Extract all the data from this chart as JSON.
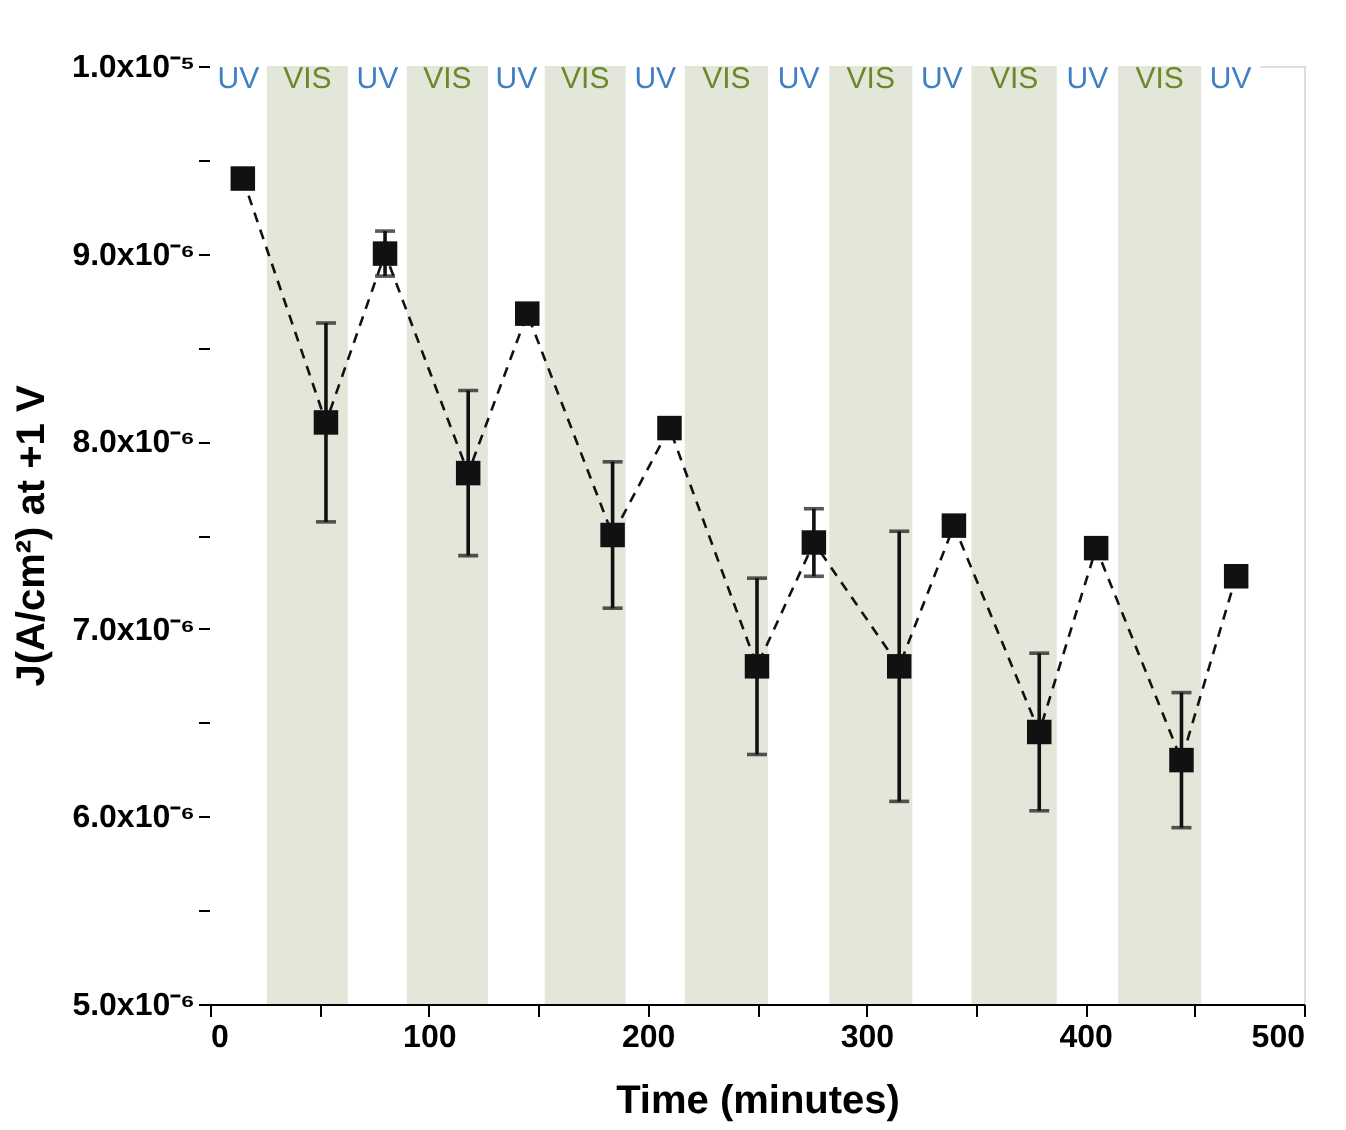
{
  "chart_data": {
    "type": "line",
    "xlabel": "Time (minutes)",
    "ylabel": "J(A/cm²) at +1 V",
    "x": [
      15,
      53,
      80,
      118,
      145,
      184,
      210,
      250,
      276,
      315,
      340,
      379,
      405,
      444,
      469
    ],
    "series": [
      {
        "color": "#111111",
        "values": [
          9.4e-06,
          8.1e-06,
          9e-06,
          7.83e-06,
          8.68e-06,
          7.5e-06,
          8.07e-06,
          6.8e-06,
          7.46e-06,
          6.8e-06,
          7.55e-06,
          6.45e-06,
          7.43e-06,
          6.3e-06,
          7.28e-06
        ],
        "errors": [
          5e-08,
          5.3e-07,
          1.2e-07,
          4.4e-07,
          3e-08,
          3.9e-07,
          3e-08,
          4.7e-07,
          1.8e-07,
          7.2e-07,
          3e-08,
          4.2e-07,
          3e-08,
          3.6e-07,
          4e-08
        ]
      }
    ],
    "marker": "square",
    "line_style": "dashed",
    "grid": false,
    "xlim": [
      0,
      500
    ],
    "xticks": [
      0,
      {
        "value": 50,
        "label": null
      },
      100,
      {
        "value": 150,
        "label": null
      },
      200,
      {
        "value": 250,
        "label": null
      },
      300,
      {
        "value": 350,
        "label": null
      },
      400,
      {
        "value": 450,
        "label": null
      },
      500
    ],
    "ylim": [
      5e-06,
      1e-05
    ],
    "yticks": [
      {
        "value": 5e-06,
        "label": "5.0x10⁻⁶"
      },
      {
        "value": 5.5e-06,
        "label": null
      },
      {
        "value": 6e-06,
        "label": "6.0x10⁻⁶"
      },
      {
        "value": 6.5e-06,
        "label": null
      },
      {
        "value": 7e-06,
        "label": "7.0x10⁻⁶"
      },
      {
        "value": 7.5e-06,
        "label": null
      },
      {
        "value": 8e-06,
        "label": "8.0x10⁻⁶"
      },
      {
        "value": 8.5e-06,
        "label": null
      },
      {
        "value": 9e-06,
        "label": "9.0x10⁻⁶"
      },
      {
        "value": 9.5e-06,
        "label": null
      },
      {
        "value": 1e-05,
        "label": "1.0x10⁻⁵"
      }
    ],
    "bands": [
      {
        "axis": "x",
        "from": 0,
        "to": 26,
        "label": "UV",
        "color": "#ffffff"
      },
      {
        "axis": "x",
        "from": 63,
        "to": 90,
        "label": "UV",
        "color": "#ffffff"
      },
      {
        "axis": "x",
        "from": 127,
        "to": 153,
        "label": "UV",
        "color": "#ffffff"
      },
      {
        "axis": "x",
        "from": 190,
        "to": 217,
        "label": "UV",
        "color": "#ffffff"
      },
      {
        "axis": "x",
        "from": 255,
        "to": 283,
        "label": "UV",
        "color": "#ffffff"
      },
      {
        "axis": "x",
        "from": 321,
        "to": 348,
        "label": "UV",
        "color": "#ffffff"
      },
      {
        "axis": "x",
        "from": 387,
        "to": 415,
        "label": "UV",
        "color": "#ffffff"
      },
      {
        "axis": "x",
        "from": 453,
        "to": 480,
        "label": "UV",
        "color": "#ffffff"
      },
      {
        "axis": "x",
        "from": 26,
        "to": 63,
        "label": "VIS",
        "color": "#e3e7da"
      },
      {
        "axis": "x",
        "from": 90,
        "to": 127,
        "label": "VIS",
        "color": "#e3e7da"
      },
      {
        "axis": "x",
        "from": 153,
        "to": 190,
        "label": "VIS",
        "color": "#e3e7da"
      },
      {
        "axis": "x",
        "from": 217,
        "to": 255,
        "label": "VIS",
        "color": "#e3e7da"
      },
      {
        "axis": "x",
        "from": 283,
        "to": 321,
        "label": "VIS",
        "color": "#e3e7da"
      },
      {
        "axis": "x",
        "from": 348,
        "to": 387,
        "label": "VIS",
        "color": "#e3e7da"
      },
      {
        "axis": "x",
        "from": 415,
        "to": 453,
        "label": "VIS",
        "color": "#e3e7da"
      }
    ]
  }
}
